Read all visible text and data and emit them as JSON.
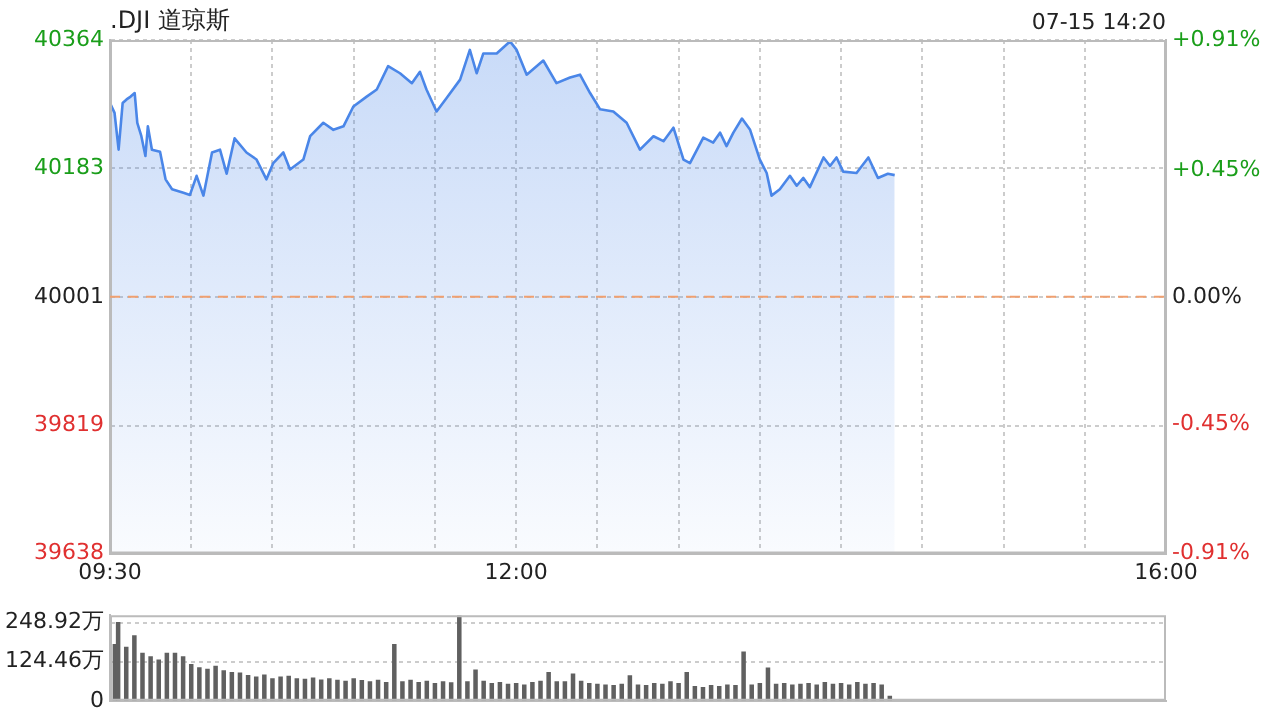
{
  "chart_data": [
    {
      "type": "area",
      "title": ".DJI 道琼斯",
      "annotations": [
        "07-15 14:20"
      ],
      "x": [
        9.5,
        9.528,
        9.553,
        9.578,
        9.602,
        9.627,
        9.652,
        9.668,
        9.693,
        9.718,
        9.733,
        9.758,
        9.808,
        9.842,
        9.882,
        9.952,
        9.992,
        10.033,
        10.075,
        10.128,
        10.177,
        10.218,
        10.267,
        10.34,
        10.402,
        10.463,
        10.505,
        10.567,
        10.608,
        10.69,
        10.732,
        10.813,
        10.875,
        10.937,
        10.998,
        11.08,
        11.142,
        11.212,
        11.285,
        11.358,
        11.408,
        11.448,
        11.51,
        11.572,
        11.655,
        11.715,
        11.757,
        11.798,
        11.88,
        11.962,
        12.003,
        12.065,
        12.167,
        12.248,
        12.332,
        12.393,
        12.455,
        12.517,
        12.598,
        12.68,
        12.762,
        12.845,
        12.907,
        12.968,
        13.03,
        13.07,
        13.152,
        13.213,
        13.255,
        13.295,
        13.337,
        13.39,
        13.44,
        13.5,
        13.542,
        13.572,
        13.623,
        13.685,
        13.727,
        13.768,
        13.808,
        13.892,
        13.932,
        13.972,
        14.013,
        14.095,
        14.168,
        14.227,
        14.288,
        14.33
      ],
      "series": [
        {
          "color": "#4a86e8",
          "values": [
            40275,
            40261,
            40209,
            40275,
            40280,
            40284,
            40289,
            40247,
            40228,
            40200,
            40242,
            40209,
            40206,
            40167,
            40153,
            40148,
            40145,
            40172,
            40144,
            40205,
            40209,
            40175,
            40225,
            40205,
            40195,
            40167,
            40190,
            40205,
            40181,
            40195,
            40228,
            40247,
            40237,
            40242,
            40270,
            40284,
            40294,
            40327,
            40317,
            40303,
            40319,
            40294,
            40263,
            40282,
            40308,
            40350,
            40317,
            40345,
            40345,
            40362,
            40350,
            40315,
            40335,
            40303,
            40311,
            40315,
            40289,
            40266,
            40263,
            40247,
            40209,
            40228,
            40221,
            40240,
            40195,
            40190,
            40226,
            40219,
            40233,
            40214,
            40233,
            40253,
            40237,
            40195,
            40176,
            40144,
            40153,
            40172,
            40158,
            40169,
            40156,
            40198,
            40186,
            40198,
            40178,
            40176,
            40198,
            40169,
            40175,
            40173
          ]
        }
      ],
      "xlim": [
        9.5,
        16
      ],
      "xticks": [
        {
          "value": 9.5,
          "label": "09:30"
        },
        {
          "value": 10,
          "label": null
        },
        {
          "value": 10.5,
          "label": null
        },
        {
          "value": 11,
          "label": null
        },
        {
          "value": 11.5,
          "label": null
        },
        {
          "value": 12,
          "label": "12:00"
        },
        {
          "value": 12.5,
          "label": null
        },
        {
          "value": 13,
          "label": null
        },
        {
          "value": 13.5,
          "label": null
        },
        {
          "value": 14,
          "label": null
        },
        {
          "value": 14.5,
          "label": null
        },
        {
          "value": 15,
          "label": null
        },
        {
          "value": 15.5,
          "label": null
        },
        {
          "value": 16,
          "label": "16:00"
        }
      ],
      "ylim": [
        39638,
        40364
      ],
      "yticks": [
        39638,
        39819,
        40001,
        40183,
        40364
      ],
      "y2lim": [
        -0.91,
        0.91
      ],
      "y2ticks": [
        {
          "value": -0.91,
          "label": "-0.91%"
        },
        {
          "value": -0.45,
          "label": "-0.45%"
        },
        {
          "value": 0,
          "label": "0.00%"
        },
        {
          "value": 0.45,
          "label": "+0.45%"
        },
        {
          "value": 0.91,
          "label": "+0.91%"
        }
      ],
      "grid": true,
      "ref_lines": [
        {
          "axis": "y",
          "value": 40001,
          "color": "#f0a070",
          "line_style": "dashed"
        }
      ]
    },
    {
      "type": "bar",
      "color": "#606060",
      "x": [
        9.53,
        9.55,
        9.6,
        9.65,
        9.7,
        9.75,
        9.8,
        9.85,
        9.9,
        9.95,
        10.0,
        10.05,
        10.1,
        10.15,
        10.2,
        10.25,
        10.3,
        10.35,
        10.4,
        10.45,
        10.5,
        10.55,
        10.6,
        10.65,
        10.7,
        10.75,
        10.8,
        10.85,
        10.9,
        10.95,
        11.0,
        11.05,
        11.1,
        11.15,
        11.2,
        11.25,
        11.3,
        11.35,
        11.4,
        11.45,
        11.5,
        11.55,
        11.6,
        11.65,
        11.7,
        11.75,
        11.8,
        11.85,
        11.9,
        11.95,
        12.0,
        12.05,
        12.1,
        12.15,
        12.2,
        12.25,
        12.3,
        12.35,
        12.4,
        12.45,
        12.5,
        12.55,
        12.6,
        12.65,
        12.7,
        12.75,
        12.8,
        12.85,
        12.9,
        12.95,
        13.0,
        13.05,
        13.1,
        13.15,
        13.2,
        13.25,
        13.3,
        13.35,
        13.4,
        13.45,
        13.5,
        13.55,
        13.6,
        13.65,
        13.7,
        13.75,
        13.8,
        13.85,
        13.9,
        13.95,
        14.0,
        14.05,
        14.1,
        14.15,
        14.2,
        14.25,
        14.3
      ],
      "values": [
        179,
        249,
        170,
        207,
        151,
        140,
        130,
        151,
        151,
        140,
        115,
        105,
        100,
        110,
        95,
        90,
        88,
        80,
        75,
        82,
        70,
        75,
        78,
        70,
        68,
        72,
        66,
        70,
        65,
        62,
        70,
        64,
        60,
        65,
        58,
        179,
        60,
        65,
        58,
        62,
        55,
        60,
        57,
        270,
        60,
        98,
        62,
        55,
        58,
        52,
        55,
        50,
        58,
        62,
        90,
        60,
        60,
        85,
        62,
        55,
        52,
        50,
        48,
        52,
        79,
        50,
        48,
        55,
        52,
        60,
        55,
        90,
        45,
        42,
        48,
        45,
        50,
        48,
        155,
        50,
        55,
        104,
        52,
        55,
        50,
        52,
        55,
        50,
        58,
        52,
        55,
        50,
        58,
        52,
        55,
        50,
        14
      ],
      "xlim": [
        9.5,
        16
      ],
      "ylim": [
        0,
        273
      ],
      "yticks": [
        0,
        {
          "value": 124.46,
          "label": "124.46万"
        },
        {
          "value": 248.92,
          "label": "248.92万"
        }
      ],
      "grid": "y",
      "tick_labels": "y"
    }
  ]
}
